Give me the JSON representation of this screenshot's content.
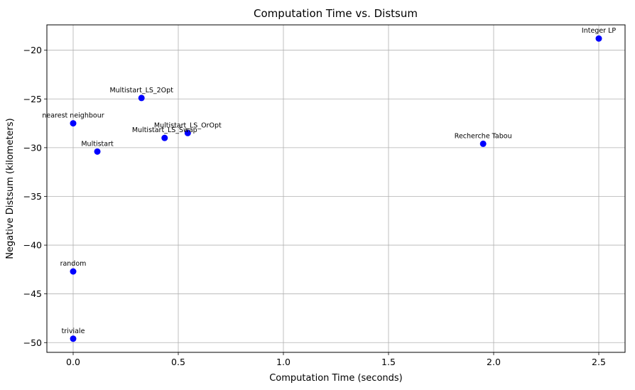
{
  "chart_data": {
    "type": "scatter",
    "title": "Computation Time vs. Distsum",
    "xlabel": "Computation Time (seconds)",
    "ylabel": "Negative Distsum (kilometers)",
    "xlim": [
      -0.125,
      2.625
    ],
    "ylim": [
      -51.0,
      -17.4
    ],
    "xticks": [
      0.0,
      0.5,
      1.0,
      1.5,
      2.0,
      2.5
    ],
    "xtick_labels": [
      "0.0",
      "0.5",
      "1.0",
      "1.5",
      "2.0",
      "2.5"
    ],
    "yticks": [
      -50,
      -45,
      -40,
      -35,
      -30,
      -25,
      -20
    ],
    "ytick_labels": [
      "−50",
      "−45",
      "−40",
      "−35",
      "−30",
      "−25",
      "−20"
    ],
    "grid": true,
    "marker_color": "#0000ff",
    "points": [
      {
        "label": "triviale",
        "x": 0.0,
        "y": -49.6
      },
      {
        "label": "random",
        "x": 0.0,
        "y": -42.7
      },
      {
        "label": "nearest neighbour",
        "x": 0.0,
        "y": -27.5
      },
      {
        "label": "Multistart",
        "x": 0.115,
        "y": -30.4
      },
      {
        "label": "Multistart_LS_2Opt",
        "x": 0.325,
        "y": -24.9
      },
      {
        "label": "Multistart_LS_Swap",
        "x": 0.435,
        "y": -29.0
      },
      {
        "label": "Multistart_LS_OrOpt",
        "x": 0.545,
        "y": -28.5
      },
      {
        "label": "Recherche Tabou",
        "x": 1.95,
        "y": -29.6
      },
      {
        "label": "Integer LP",
        "x": 2.5,
        "y": -18.8
      }
    ]
  }
}
